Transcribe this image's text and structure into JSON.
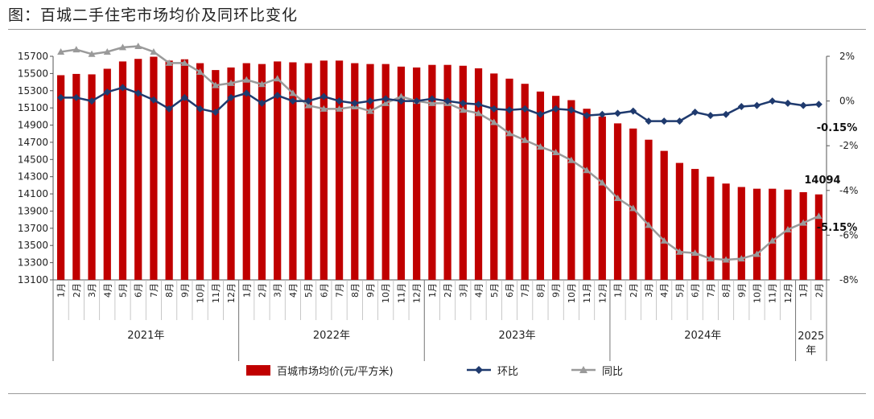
{
  "title": "图：百城二手住宅市场均价及同环比变化",
  "chart_data": {
    "type": "bar+line",
    "left_axis": {
      "ylim": [
        13100,
        15700
      ],
      "ticks": [
        13100,
        13300,
        13500,
        13700,
        13900,
        14100,
        14300,
        14500,
        14700,
        14900,
        15100,
        15300,
        15500,
        15700
      ]
    },
    "right_axis": {
      "ylim": [
        -8,
        2
      ],
      "ticks": [
        "2%",
        "0%",
        "-2%",
        "-4%",
        "-6%",
        "-8%"
      ],
      "tick_values": [
        2,
        0,
        -2,
        -4,
        -6,
        -8
      ]
    },
    "months": [
      "1月",
      "2月",
      "3月",
      "4月",
      "5月",
      "6月",
      "7月",
      "8月",
      "9月",
      "10月",
      "11月",
      "12月",
      "1月",
      "2月",
      "3月",
      "4月",
      "5月",
      "6月",
      "7月",
      "8月",
      "9月",
      "10月",
      "11月",
      "12月",
      "1月",
      "2月",
      "3月",
      "4月",
      "5月",
      "6月",
      "7月",
      "8月",
      "9月",
      "10月",
      "11月",
      "12月",
      "1月",
      "2月",
      "3月",
      "4月",
      "5月",
      "6月",
      "7月",
      "8月",
      "9月",
      "10月",
      "11月",
      "12月",
      "1月",
      "2月"
    ],
    "years": [
      {
        "label": "2021年",
        "months": 12
      },
      {
        "label": "2022年",
        "months": 12
      },
      {
        "label": "2023年",
        "months": 12
      },
      {
        "label": "2024年",
        "months": 12
      },
      {
        "label": "2025年",
        "months": 2
      }
    ],
    "series": [
      {
        "name": "百城市场均价(元/平方米)",
        "type": "bar",
        "axis": "left",
        "color": "#c00000",
        "values": [
          15480,
          15495,
          15490,
          15555,
          15640,
          15670,
          15695,
          15650,
          15665,
          15620,
          15540,
          15570,
          15620,
          15610,
          15640,
          15630,
          15620,
          15650,
          15650,
          15620,
          15610,
          15610,
          15580,
          15570,
          15600,
          15600,
          15590,
          15560,
          15500,
          15440,
          15380,
          15290,
          15240,
          15190,
          15090,
          15000,
          14920,
          14860,
          14730,
          14600,
          14460,
          14390,
          14300,
          14220,
          14180,
          14160,
          14160,
          14150,
          14120,
          14094
        ]
      },
      {
        "name": "环比",
        "type": "line",
        "axis": "right",
        "color": "#1f3a6e",
        "values": [
          0.15,
          0.15,
          0.0,
          0.4,
          0.6,
          0.35,
          0.05,
          -0.35,
          0.15,
          -0.35,
          -0.5,
          0.15,
          0.35,
          -0.1,
          0.25,
          0.0,
          0.0,
          0.2,
          0.0,
          -0.1,
          0.0,
          0.1,
          0.0,
          0.0,
          0.1,
          0.0,
          -0.1,
          -0.15,
          -0.35,
          -0.4,
          -0.35,
          -0.6,
          -0.35,
          -0.4,
          -0.65,
          -0.6,
          -0.55,
          -0.45,
          -0.9,
          -0.9,
          -0.9,
          -0.5,
          -0.65,
          -0.6,
          -0.25,
          -0.2,
          0.0,
          -0.1,
          -0.2,
          -0.15
        ]
      },
      {
        "name": "同比",
        "type": "line",
        "axis": "right",
        "color": "#9a9a9a",
        "values": [
          2.2,
          2.3,
          2.1,
          2.2,
          2.4,
          2.45,
          2.2,
          1.7,
          1.7,
          1.3,
          0.7,
          0.8,
          0.95,
          0.75,
          1.0,
          0.35,
          -0.2,
          -0.35,
          -0.35,
          -0.25,
          -0.45,
          -0.1,
          0.2,
          0.0,
          -0.1,
          -0.1,
          -0.4,
          -0.55,
          -0.95,
          -1.45,
          -1.75,
          -2.05,
          -2.3,
          -2.65,
          -3.1,
          -3.65,
          -4.35,
          -4.8,
          -5.55,
          -6.25,
          -6.75,
          -6.8,
          -7.05,
          -7.1,
          -7.05,
          -6.85,
          -6.25,
          -5.75,
          -5.45,
          -5.15
        ]
      }
    ],
    "annotations": {
      "last_price": "14094",
      "last_mom": "-0.15%",
      "last_yoy": "-5.15%"
    },
    "legend": {
      "position": "bottom",
      "labels": [
        "百城市场均价(元/平方米)",
        "环比",
        "同比"
      ]
    }
  }
}
